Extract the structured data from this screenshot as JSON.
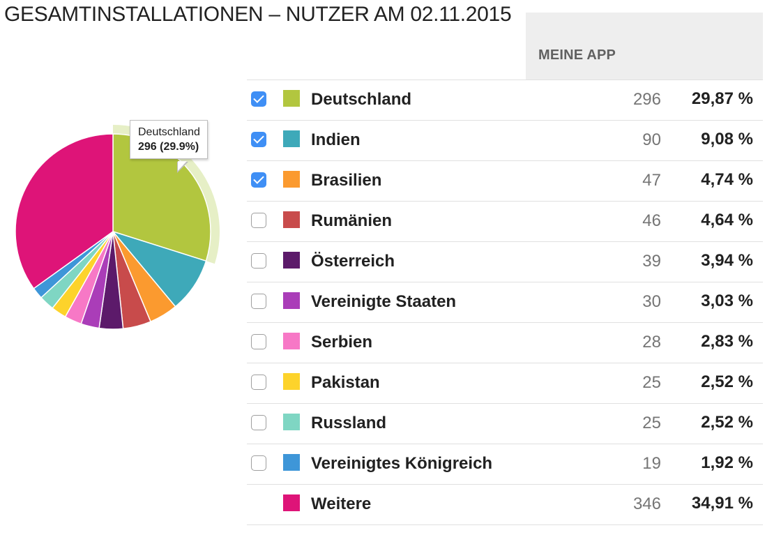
{
  "title": "GESAMTINSTALLATIONEN – NUTZER AM 02.11.2015",
  "table": {
    "column_header": "MEINE APP",
    "rows": [
      {
        "label": "Deutschland",
        "count": "296",
        "percent": "29,87 %",
        "value": 296,
        "color": "#b2c63f",
        "checked": true,
        "has_checkbox": true
      },
      {
        "label": "Indien",
        "count": "90",
        "percent": "9,08 %",
        "value": 90,
        "color": "#3ea9b9",
        "checked": true,
        "has_checkbox": true
      },
      {
        "label": "Brasilien",
        "count": "47",
        "percent": "4,74 %",
        "value": 47,
        "color": "#fb9a2f",
        "checked": true,
        "has_checkbox": true
      },
      {
        "label": "Rumänien",
        "count": "46",
        "percent": "4,64 %",
        "value": 46,
        "color": "#c84b4b",
        "checked": false,
        "has_checkbox": true
      },
      {
        "label": "Österreich",
        "count": "39",
        "percent": "3,94 %",
        "value": 39,
        "color": "#5c1a6a",
        "checked": false,
        "has_checkbox": true
      },
      {
        "label": "Vereinigte Staaten",
        "count": "30",
        "percent": "3,03 %",
        "value": 30,
        "color": "#aa3db8",
        "checked": false,
        "has_checkbox": true
      },
      {
        "label": "Serbien",
        "count": "28",
        "percent": "2,83 %",
        "value": 28,
        "color": "#f778c6",
        "checked": false,
        "has_checkbox": true
      },
      {
        "label": "Pakistan",
        "count": "25",
        "percent": "2,52 %",
        "value": 25,
        "color": "#fdd32b",
        "checked": false,
        "has_checkbox": true
      },
      {
        "label": "Russland",
        "count": "25",
        "percent": "2,52 %",
        "value": 25,
        "color": "#7fd6c3",
        "checked": false,
        "has_checkbox": true
      },
      {
        "label": "Vereinigtes Königreich",
        "count": "19",
        "percent": "1,92 %",
        "value": 19,
        "color": "#3e96d8",
        "checked": false,
        "has_checkbox": true
      },
      {
        "label": "Weitere",
        "count": "346",
        "percent": "34,91 %",
        "value": 346,
        "color": "#de1478",
        "checked": false,
        "has_checkbox": false
      }
    ]
  },
  "tooltip": {
    "name": "Deutschland",
    "value": "296 (29.9%)"
  },
  "chart_data": {
    "type": "pie",
    "categories": [
      "Deutschland",
      "Indien",
      "Brasilien",
      "Rumänien",
      "Österreich",
      "Vereinigte Staaten",
      "Serbien",
      "Pakistan",
      "Russland",
      "Vereinigtes Königreich",
      "Weitere"
    ],
    "values": [
      296,
      90,
      47,
      46,
      39,
      30,
      28,
      25,
      25,
      19,
      346
    ],
    "colors": [
      "#b2c63f",
      "#3ea9b9",
      "#fb9a2f",
      "#c84b4b",
      "#5c1a6a",
      "#aa3db8",
      "#f778c6",
      "#fdd32b",
      "#7fd6c3",
      "#3e96d8",
      "#de1478"
    ],
    "highlighted": "Deutschland",
    "halo_color": "#e6efc6"
  }
}
